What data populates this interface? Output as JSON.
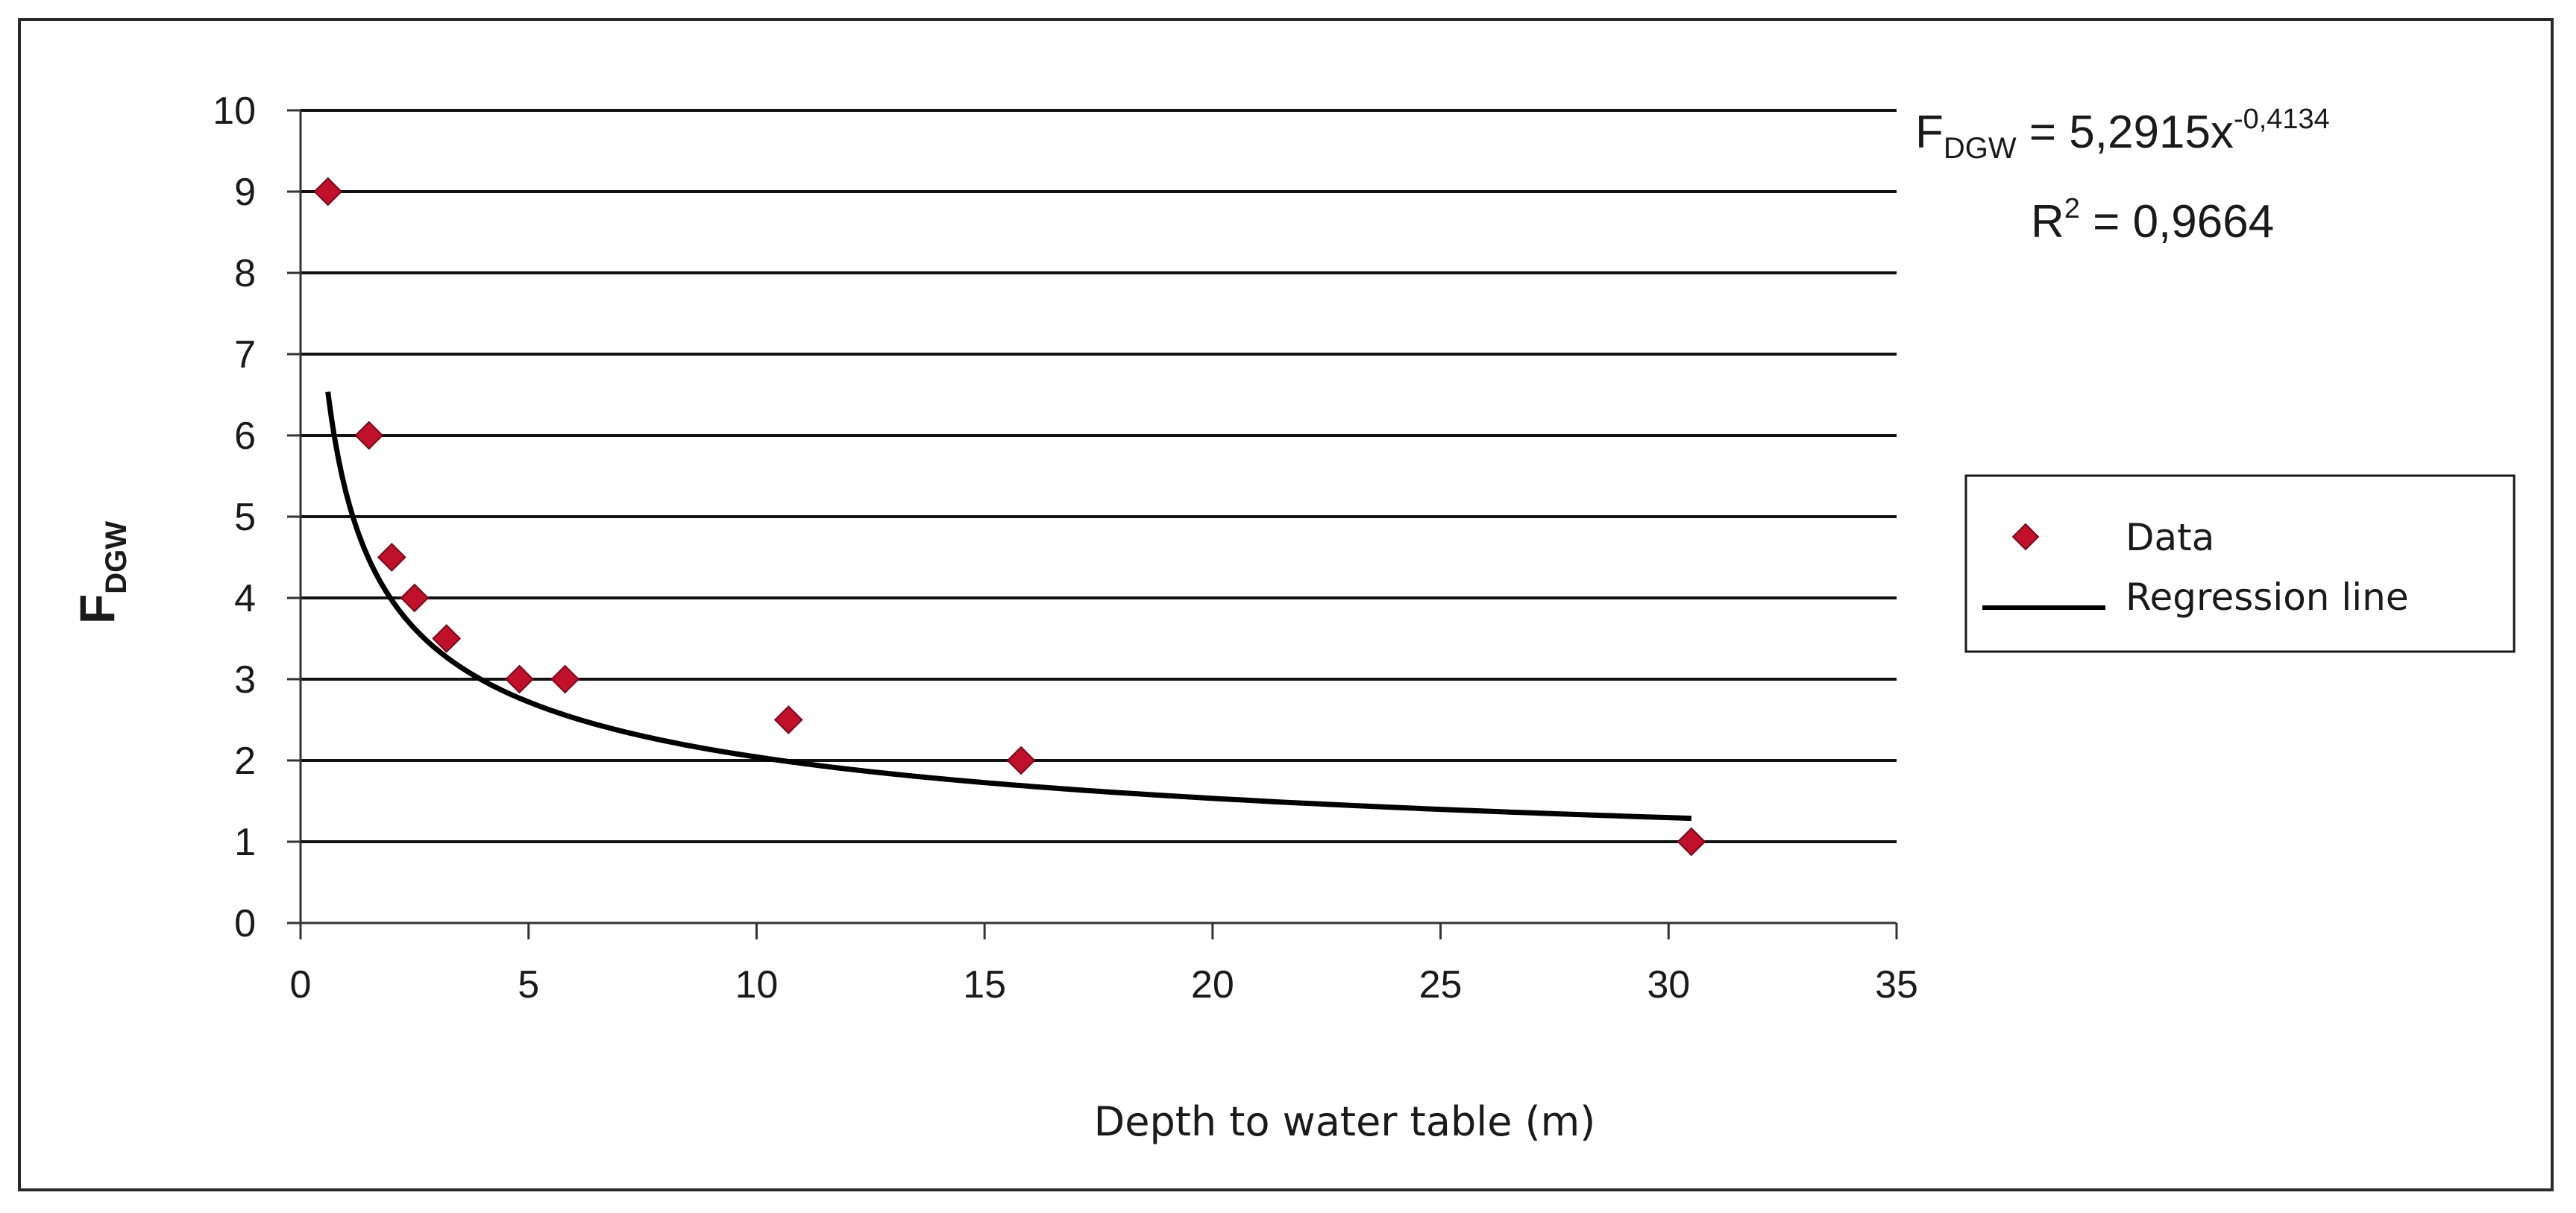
{
  "chart_data": {
    "type": "scatter",
    "title": "",
    "xlabel": "Depth to water table (m)",
    "ylabel_main": "F",
    "ylabel_sub": "DGW",
    "xlim": [
      0,
      35
    ],
    "ylim": [
      0,
      10
    ],
    "x_ticks": [
      0,
      5,
      10,
      15,
      20,
      25,
      30,
      35
    ],
    "y_ticks": [
      0,
      1,
      2,
      3,
      4,
      5,
      6,
      7,
      8,
      9,
      10
    ],
    "grid": "horizontal",
    "series": [
      {
        "name": "Data",
        "kind": "points",
        "color": "#c0102a",
        "x": [
          0.6,
          1.5,
          2.0,
          2.5,
          3.2,
          4.8,
          5.8,
          10.7,
          15.8,
          30.5
        ],
        "y": [
          9,
          6,
          4.5,
          4,
          3.5,
          3,
          3,
          2.5,
          2,
          1
        ]
      },
      {
        "name": "Regression line",
        "kind": "power-fit",
        "color": "#000000",
        "a": 5.2915,
        "b": -0.4134,
        "x_range": [
          0.6,
          30.5
        ]
      }
    ],
    "equation": {
      "lhs_main": "F",
      "lhs_sub": "DGW",
      "rhs_base": " = 5,2915x",
      "rhs_exp": "-0,4134",
      "r2_main": "R",
      "r2_sup": "2",
      "r2_rhs": " = 0,9664"
    },
    "legend": {
      "position": "right",
      "entries": [
        {
          "label": "Data",
          "marker": "diamond"
        },
        {
          "label": "Regression line",
          "marker": "line"
        }
      ]
    }
  }
}
